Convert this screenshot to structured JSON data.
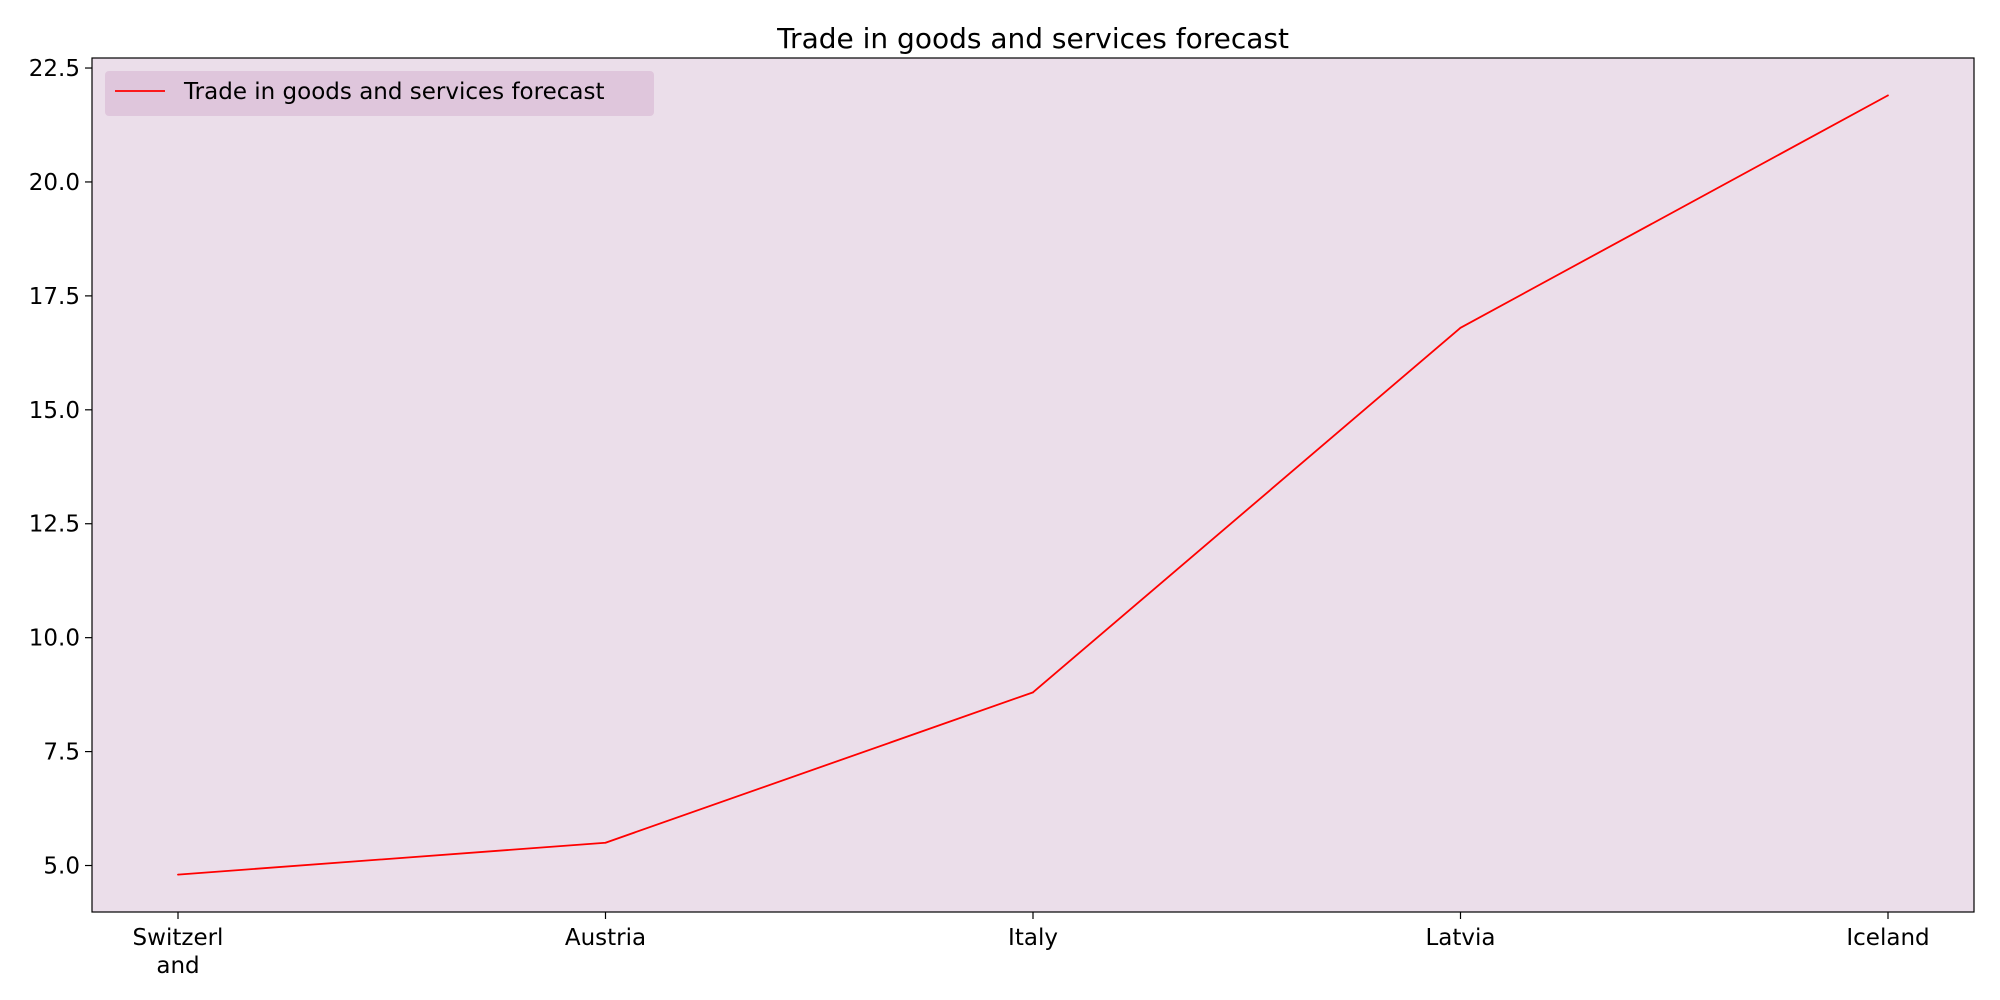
{
  "chart_data": {
    "type": "line",
    "title": "Trade in goods and services forecast",
    "xlabel": "",
    "ylabel": "",
    "categories": [
      "Switzerland",
      "Austria",
      "Italy",
      "Latvia",
      "Iceland"
    ],
    "category_labels": [
      [
        "Switzerl",
        "and"
      ],
      [
        "Austria"
      ],
      [
        "Italy"
      ],
      [
        "Latvia"
      ],
      [
        "Iceland"
      ]
    ],
    "series": [
      {
        "name": "Trade in goods and services forecast",
        "values": [
          4.8,
          5.5,
          8.8,
          16.8,
          21.9
        ],
        "color": "#ff0000"
      }
    ],
    "yticks": [
      5.0,
      7.5,
      10.0,
      12.5,
      15.0,
      17.5,
      20.0,
      22.5
    ],
    "ytick_labels": [
      "5.0",
      "7.5",
      "10.0",
      "12.5",
      "15.0",
      "17.5",
      "20.0",
      "22.5"
    ],
    "ylim": [
      3.98,
      22.72
    ],
    "grid": false,
    "legend_position": "upper-left",
    "plot_background": "#ebdeea",
    "legend_background": "#dfc6dc"
  }
}
